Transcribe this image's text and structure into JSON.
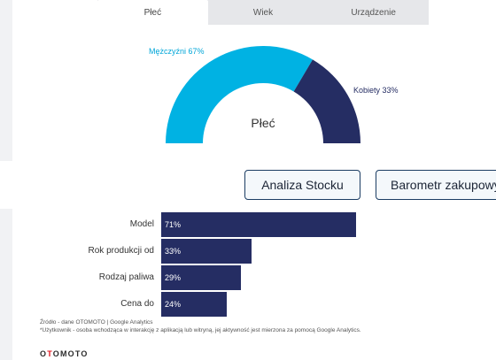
{
  "tabs": [
    {
      "label": "Płeć",
      "active": true
    },
    {
      "label": "Wiek",
      "active": false
    },
    {
      "label": "Urządzenie",
      "active": false
    }
  ],
  "donut": {
    "center_label": "Płeć",
    "segments": [
      {
        "label": "Mężczyźni 67%",
        "value": 67,
        "color": "#00b2e3"
      },
      {
        "label": "Kobiety 33%",
        "value": 33,
        "color": "#252d63"
      }
    ]
  },
  "buttons": {
    "stock": "Analiza Stocku",
    "barometr": "Barometr zakupowy"
  },
  "chart_data": {
    "type": "bar",
    "orientation": "horizontal",
    "categories": [
      "Model",
      "Rok produkcji od",
      "Rodzaj paliwa",
      "Cena do"
    ],
    "values": [
      71,
      33,
      29,
      24
    ],
    "value_labels": [
      "71%",
      "33%",
      "29%",
      "24%"
    ],
    "xlim": [
      0,
      100
    ],
    "color": "#252d63"
  },
  "footer": {
    "source": "Źródło - dane OTOMOTO | Google Analytics",
    "note": "*Użytkownik - osoba wchodząca w interakcję z aplikacją lub witryną, jej aktywność jest mierzona za pomocą Google Analytics."
  },
  "logo": "OTOMOTO"
}
